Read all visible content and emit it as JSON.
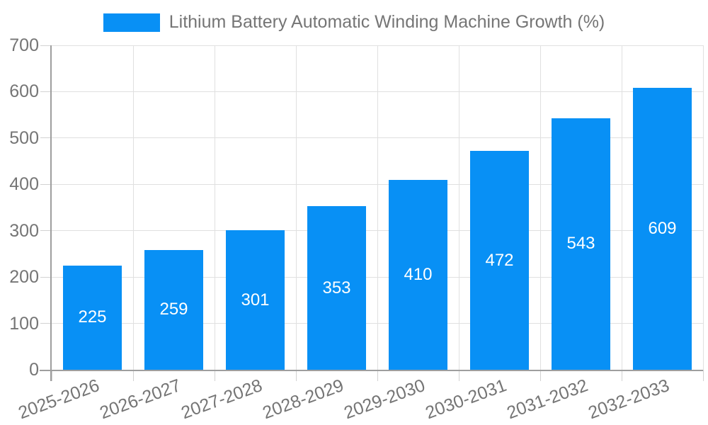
{
  "chart_data": {
    "type": "bar",
    "title": "Lithium Battery Automatic Winding Machine Growth (%)",
    "categories": [
      "2025-2026",
      "2026-2027",
      "2027-2028",
      "2028-2029",
      "2029-2030",
      "2030-2031",
      "2031-2032",
      "2032-2033"
    ],
    "values": [
      225,
      259,
      301,
      353,
      410,
      472,
      543,
      609
    ],
    "xlabel": "",
    "ylabel": "",
    "ylim": [
      0,
      700
    ],
    "yticks": [
      0,
      100,
      200,
      300,
      400,
      500,
      600,
      700
    ],
    "legend_position": "top-center",
    "grid": "both",
    "bar_labels": "inside-center-white",
    "colors": {
      "bar": "#0890F5",
      "axis": "#9E9E9E",
      "gridline": "#E0E0E0",
      "tick": "#D2D2D2",
      "text": "#757575",
      "bar_label": "#FFFFFF",
      "background": "#FFFFFF"
    }
  }
}
